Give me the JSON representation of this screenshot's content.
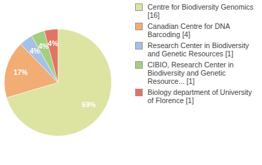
{
  "chart_data": {
    "type": "pie",
    "categories": [
      "Centre for Biodiversity Genomics [16]",
      "Canadian Centre for DNA Barcoding [4]",
      "Research Center in Biodiversity and Genetic Resources [1]",
      "CIBIO, Research Center in Biodiversity and Genetic Resource... [1]",
      "Biology department of University of Florence [1]"
    ],
    "values": [
      69,
      17,
      4,
      4,
      4
    ],
    "value_labels": [
      "69%",
      "17%",
      "4%",
      "4%",
      "4%"
    ],
    "data_labels": true,
    "colors": [
      "#dde3a0",
      "#f1ad74",
      "#a7c0e6",
      "#a2cf80",
      "#e27464"
    ],
    "legend": "right"
  }
}
